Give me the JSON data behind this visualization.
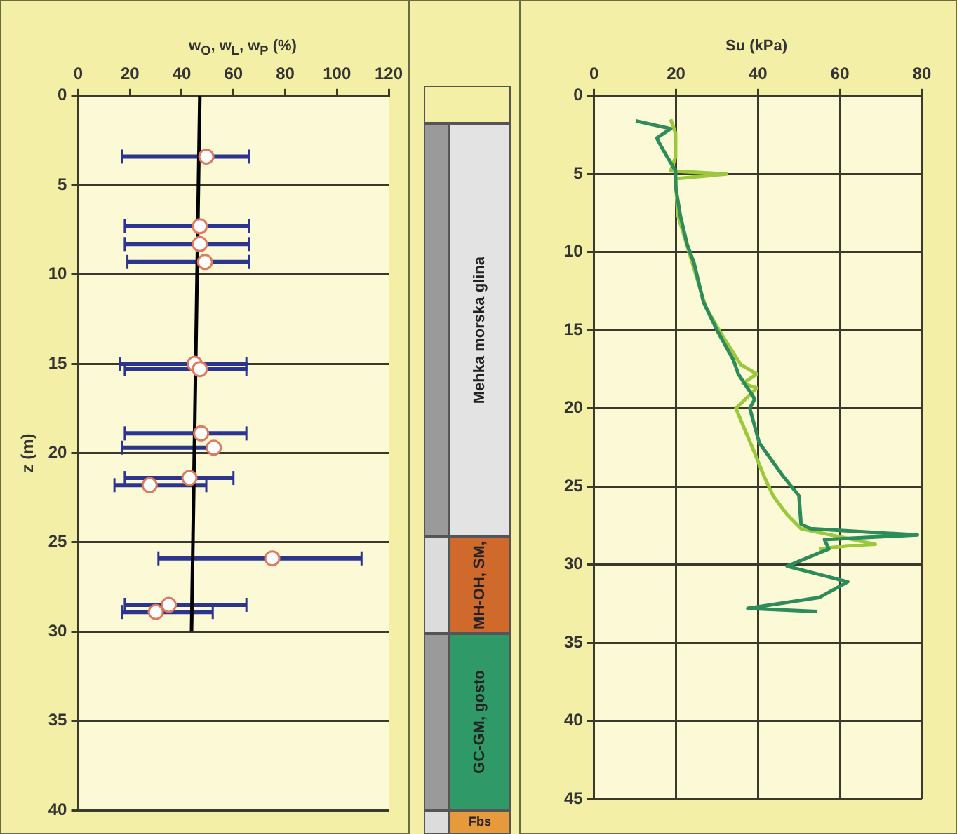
{
  "chart_data": [
    {
      "type": "scatter",
      "xlabel": "w$_{O}$, w$_{L}$, w$_{P}$ (%)",
      "ylabel": "z (m)",
      "xlim": [
        0,
        120
      ],
      "xticks": [
        0,
        20,
        40,
        60,
        80,
        100,
        120
      ],
      "ylim": [
        40,
        0
      ],
      "yticks": [
        0,
        5,
        10,
        15,
        20,
        25,
        30,
        35,
        40
      ],
      "grid": "y",
      "series": [
        {
          "type": "scatter",
          "marker": "circle",
          "color": "#e07a5f",
          "x": [
            49.5,
            47,
            47,
            49,
            45,
            47,
            47.5,
            52.4,
            43,
            27.6,
            75,
            35,
            30
          ],
          "values": [
            3.4,
            7.3,
            8.3,
            9.3,
            15,
            15.3,
            18.9,
            19.7,
            21.4,
            21.8,
            25.9,
            28.5,
            28.9
          ],
          "xerrors": [
            [
              17,
              66
            ],
            [
              18,
              66
            ],
            [
              18,
              66
            ],
            [
              19,
              66
            ],
            [
              16,
              65
            ],
            [
              18,
              65
            ],
            [
              18,
              65
            ],
            [
              17,
              53
            ],
            [
              18,
              60
            ],
            [
              14,
              49.5
            ],
            [
              31,
              109.5
            ],
            [
              18,
              65
            ],
            [
              17,
              52
            ]
          ]
        },
        {
          "type": "line",
          "marker": "none",
          "color": "#000000",
          "x": [
            47,
            43.8
          ],
          "values": [
            0,
            30
          ]
        }
      ]
    },
    {
      "type": "other",
      "annotations": [
        "Mehka morska glina",
        "MH-OH, SM,",
        "GC-GM, gosto",
        "Fbs"
      ]
    },
    {
      "type": "line",
      "xlabel": "Su (kPa)",
      "xlim": [
        0,
        80
      ],
      "xticks": [
        0,
        20,
        40,
        60,
        80
      ],
      "ylim": [
        45,
        0
      ],
      "yticks": [
        0,
        5,
        10,
        15,
        20,
        25,
        30,
        35,
        40,
        45
      ],
      "grid": true,
      "marker": "none",
      "series": [
        {
          "color": "#2e8b5a",
          "x": [
            10.2,
            18.7,
            15.3,
            16.5,
            17.6,
            19.9,
            19.9,
            21,
            22.7,
            24.4,
            26.7,
            30,
            34,
            35.2,
            39.2,
            38,
            40.3,
            46,
            50,
            50.5,
            52.8,
            78.9,
            56.2,
            57.3,
            47.1,
            61.9,
            55,
            37.5,
            54.5
          ],
          "values": [
            1.6,
            2.1,
            2.7,
            3.3,
            3.8,
            4.8,
            5.8,
            7.6,
            9.5,
            10.7,
            13.2,
            15,
            16.9,
            17.8,
            19.4,
            20,
            22.2,
            24.3,
            25.6,
            27.4,
            27.7,
            28.1,
            28.4,
            29,
            30.1,
            31.1,
            32.1,
            32.8,
            33
          ]
        },
        {
          "color": "#9cc93c",
          "x": [
            18.7,
            19.9,
            19.9,
            18.7,
            32.3,
            19.9,
            20.4,
            23.3,
            27.2,
            31.2,
            35.8,
            39.7,
            36.3,
            39.7,
            34.6,
            39.1,
            41.4,
            43.7,
            47.1,
            50.5,
            68.6,
            61.8,
            55
          ],
          "values": [
            1.5,
            2.4,
            3.9,
            4.8,
            5,
            5.3,
            7.6,
            10.1,
            13.5,
            15.3,
            17.2,
            17.8,
            18.4,
            18.7,
            20,
            22.8,
            24.3,
            25.6,
            26.8,
            27.7,
            28.7,
            28.8,
            29
          ]
        }
      ]
    }
  ]
}
